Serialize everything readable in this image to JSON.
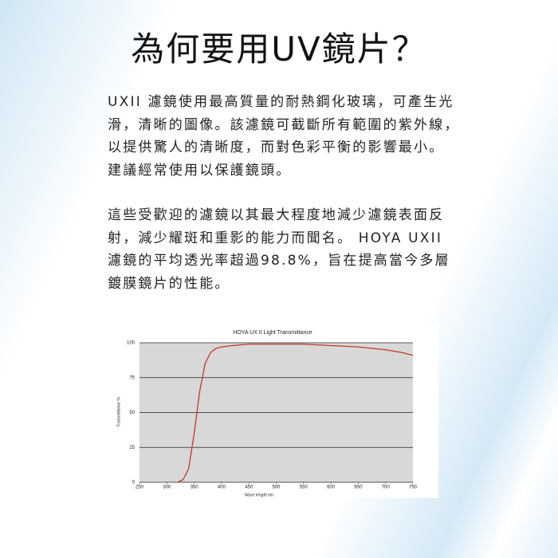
{
  "heading": "為何要用UV鏡片？",
  "paragraphs": [
    [
      "UXII 濾鏡使用最高質量的耐熱鋼化玻璃，可產生光",
      "滑，清晰的圖像。該濾鏡可截斷所有範圍的紫外線，",
      "以提供驚人的清晰度，而對色彩平衡的影響最小。",
      "建議經常使用以保護鏡頭。"
    ],
    [
      "這些受歡迎的濾鏡以其最大程度地減少濾鏡表面反",
      "射，減少耀斑和重影的能力而聞名。 HOYA UXII",
      "濾鏡的平均透光率超過98.8%，旨在提高當今多層",
      "鍍膜鏡片的性能。"
    ]
  ],
  "chart_data": {
    "type": "line",
    "title": "HOYA UX II Light Transmittance",
    "x_label": "Wave length nm",
    "y_label": "Transmittance %",
    "x": [
      320,
      330,
      340,
      350,
      360,
      370,
      380,
      390,
      400,
      420,
      450,
      500,
      550,
      600,
      650,
      700,
      730,
      750
    ],
    "values": [
      0,
      2,
      10,
      35,
      65,
      85,
      93,
      96,
      97,
      98,
      99,
      99,
      99,
      98,
      97,
      95,
      93,
      91
    ],
    "color": "#c0392b",
    "xlim": [
      250,
      750
    ],
    "xticks": [
      250,
      300,
      350,
      400,
      450,
      500,
      550,
      600,
      650,
      700,
      750
    ],
    "ylim": [
      0,
      100
    ],
    "yticks": [
      0,
      25,
      50,
      75,
      100
    ],
    "grid": true
  }
}
